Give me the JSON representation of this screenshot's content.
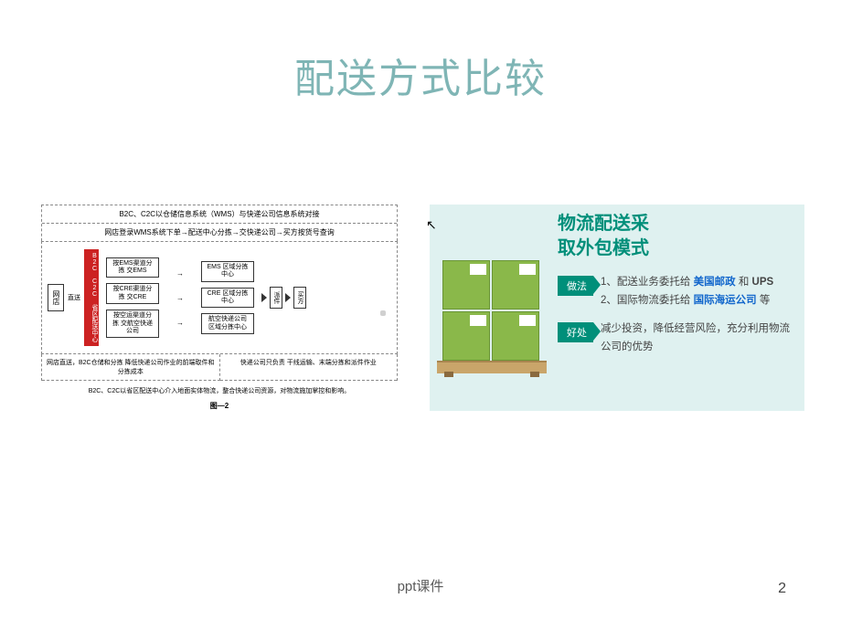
{
  "title": {
    "text": "配送方式比较",
    "color": "#7fb5b5"
  },
  "cursor_glyph": "↖",
  "diagram": {
    "header1": "B2C、C2C以仓储信息系统（WMS）与快递公司信息系统对接",
    "header2": "网店登录WMS系统下单→配送中心分拣→交快递公司→买方按货号查询",
    "store": "网店",
    "direct": "直送",
    "red": "B2C C2C 省区配送中心",
    "sort": [
      "按EMS渠道分拣\n交EMS",
      "按CRE渠道分拣\n交CRE",
      "按空运渠道分拣\n交航空快递公司"
    ],
    "arrow": "→",
    "region": [
      "EMS\n区域分拣中心",
      "CRE\n区域分拣中心",
      "航空快递公司\n区域分拣中心"
    ],
    "deliver": "派件",
    "buyer": "买方",
    "footer_left": "网店直送，B2C仓储和分拣\n降低快递公司作业的前端取件和分拣成本",
    "footer_right": "快递公司只负责\n干线运输、末端分拣和派件作业",
    "bottom": "B2C、C2C以省区配送中心介入地面实体物流，整合快递公司资源，对物流施加掌控和影响。",
    "figure": "图—2"
  },
  "right": {
    "title": "物流配送采\n取外包模式",
    "badge1": "做法",
    "line1a": "1、配送业务委托给",
    "usps": "美国邮政",
    "line1b": "和",
    "ups": "UPS",
    "line2a": "2、国际物流委托给",
    "intl": "国际海运公司",
    "line2b": "等",
    "badge2": "好处",
    "benefit": "减少投资，降低经营风险，充分利用物流公司的优势",
    "colors": {
      "panel_bg": "#dff1f0",
      "accent": "#008f7a",
      "box": "#8ab84a",
      "pallet": "#c9a56a",
      "link_blue": "#1166cc"
    }
  },
  "footer": "ppt课件",
  "page": "2"
}
